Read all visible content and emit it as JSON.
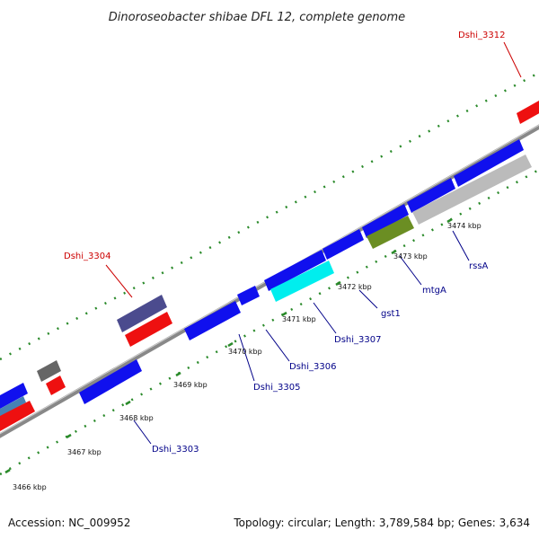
{
  "title": "Dinoroseobacter shibae DFL 12, complete genome",
  "footer": {
    "accession": "Accession: NC_009952",
    "summary": "Topology: circular; Length: 3,789,584 bp; Genes: 3,634"
  },
  "colors": {
    "cds_blue": "#1010ee",
    "rna_red": "#ee1010",
    "label_blue": "#000088",
    "label_red": "#cc0000",
    "tick_green": "#2a8a2a",
    "backbone": "#888888"
  },
  "scale_labels": [
    "3466 kbp",
    "3467 kbp",
    "3468 kbp",
    "3469 kbp",
    "3470 kbp",
    "3471 kbp",
    "3472 kbp",
    "3473 kbp",
    "3474 kbp"
  ],
  "gene_labels": {
    "dshi_3312": "Dshi_3312",
    "dshi_3304": "Dshi_3304",
    "dshi_3303": "Dshi_3303",
    "dshi_3305": "Dshi_3305",
    "dshi_3306": "Dshi_3306",
    "dshi_3307": "Dshi_3307",
    "gst1": "gst1",
    "mtgA": "mtgA",
    "rssA": "rssA"
  }
}
